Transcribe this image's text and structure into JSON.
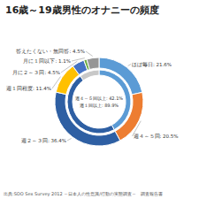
{
  "chart_data": {
    "type": "pie",
    "title": "16歳～19歳男性のオナニーの頻度",
    "series": [
      {
        "categories": [
          "ほぼ毎日: 21.6%",
          "週４～５回: 20.5%",
          "週２～３回: 36.4%",
          "週１回程度: 11.4%",
          "月に２～３回: 4.5%",
          "月に１回以下: 1.1%",
          "答えたくない・無回答: 4.5%"
        ],
        "values": [
          21.6,
          20.5,
          36.4,
          11.4,
          4.5,
          1.1,
          4.5
        ],
        "colors": [
          "#5b9bd5",
          "#ed7d31",
          "#2e5fa3",
          "#ffc000",
          "#4472c4",
          "#70ad47",
          "#969696"
        ]
      },
      {
        "values": [
          42.1,
          47.8,
          10.1
        ],
        "colors": [
          "#5b9bd5",
          "#2e5fa3",
          "#c8c8c8"
        ]
      }
    ],
    "annotations": [
      "週４～５回以上: 42.1%",
      "週１回以上: 89.9%",
      "出典:SOO Sex Survey 2012 ～日本人の性意識/行動の実態調査～　調査報告書"
    ]
  }
}
